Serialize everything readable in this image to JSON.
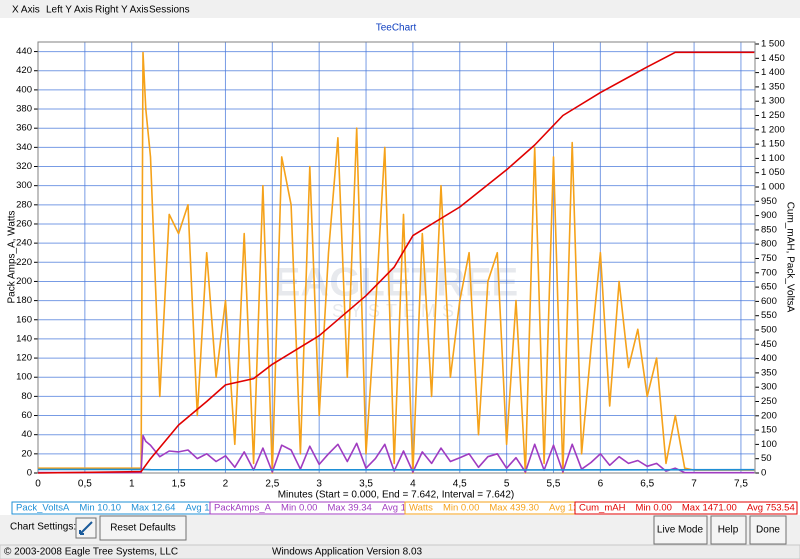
{
  "menu": [
    "X Axis",
    "Left Y Axis",
    "Right Y Axis",
    "Sessions"
  ],
  "chart_data": {
    "type": "line",
    "title": "TeeChart",
    "watermark": [
      "EAGLETREE",
      "SYSTEMS"
    ],
    "x_label": "Minutes (Start = 0.000,  End = 7.642,  Interval =  7.642)",
    "y_label": "Pack Amps_A, Watts",
    "y2_label": "Cum_mAH, Pack_VoltsA",
    "xlim": [
      0,
      7.65
    ],
    "ylim": [
      0,
      450
    ],
    "y2lim": [
      0,
      1507
    ],
    "grid": true,
    "xticks": [
      0,
      {
        "value": 0.5,
        "label": "0,5"
      },
      1,
      {
        "value": 1.5,
        "label": "1,5"
      },
      2,
      {
        "value": 2.5,
        "label": "2,5"
      },
      3,
      {
        "value": 3.5,
        "label": "3,5"
      },
      4,
      {
        "value": 4.5,
        "label": "4,5"
      },
      5,
      {
        "value": 5.5,
        "label": "5,5"
      },
      6,
      {
        "value": 6.5,
        "label": "6,5"
      },
      7,
      {
        "value": 7.5,
        "label": "7,5"
      }
    ],
    "yticks": [
      0,
      20,
      40,
      60,
      80,
      100,
      120,
      140,
      160,
      180,
      200,
      220,
      240,
      260,
      280,
      300,
      320,
      340,
      360,
      380,
      400,
      420,
      440
    ],
    "y2ticks": [
      0,
      50,
      100,
      150,
      200,
      250,
      300,
      350,
      400,
      450,
      500,
      550,
      600,
      650,
      700,
      750,
      800,
      850,
      900,
      950,
      {
        "value": 1000,
        "label": "1 000"
      },
      {
        "value": 1050,
        "label": "1 050"
      },
      {
        "value": 1100,
        "label": "1 100"
      },
      {
        "value": 1150,
        "label": "1 150"
      },
      {
        "value": 1200,
        "label": "1 200"
      },
      {
        "value": 1250,
        "label": "1 250"
      },
      {
        "value": 1300,
        "label": "1 300"
      },
      {
        "value": 1350,
        "label": "1 350"
      },
      {
        "value": 1400,
        "label": "1 400"
      },
      {
        "value": 1450,
        "label": "1 450"
      },
      {
        "value": 1500,
        "label": "1 500"
      }
    ],
    "series": [
      {
        "name": "Pack_VoltsA",
        "color": "#1e8fd6",
        "axis": "y2",
        "stats": [
          "Min 10.10",
          "Max 12.64",
          "Avg 11.20"
        ],
        "x": [
          0,
          1.1,
          1.2,
          3,
          5,
          7.642
        ],
        "values": [
          12.6,
          12.6,
          11.5,
          11.2,
          10.9,
          11.5
        ]
      },
      {
        "name": "PackAmps_A",
        "color": "#a03cc0",
        "axis": "y",
        "stats": [
          "Min 0.00",
          "Max 39.34",
          "Avg 11.57"
        ],
        "x": [
          0,
          1.1,
          1.12,
          1.15,
          1.2,
          1.3,
          1.4,
          1.5,
          1.6,
          1.7,
          1.8,
          1.9,
          2.0,
          2.1,
          2.2,
          2.3,
          2.4,
          2.5,
          2.6,
          2.7,
          2.8,
          2.9,
          3.0,
          3.1,
          3.2,
          3.3,
          3.4,
          3.5,
          3.6,
          3.7,
          3.8,
          3.9,
          4.0,
          4.1,
          4.2,
          4.3,
          4.4,
          4.5,
          4.6,
          4.7,
          4.8,
          4.9,
          5.0,
          5.1,
          5.2,
          5.3,
          5.4,
          5.5,
          5.6,
          5.7,
          5.8,
          5.9,
          6.0,
          6.1,
          6.2,
          6.3,
          6.4,
          6.5,
          6.6,
          6.7,
          6.8,
          6.9,
          7.0,
          7.642
        ],
        "values": [
          0.4,
          0.4,
          39,
          33,
          29,
          17,
          23,
          22,
          24,
          15,
          20,
          12,
          18,
          6,
          22,
          3,
          26,
          1,
          29,
          24,
          4,
          28,
          9,
          20,
          30,
          12,
          31,
          5,
          15,
          30,
          2,
          23,
          1,
          22,
          10,
          26,
          12,
          16,
          20,
          6,
          17,
          20,
          5,
          16,
          1,
          30,
          3,
          29,
          1,
          30,
          4,
          11,
          20,
          8,
          17,
          10,
          13,
          7,
          10,
          2,
          5,
          0.4,
          0.3,
          0.3
        ]
      },
      {
        "name": "Watts",
        "color": "#f5a21a",
        "axis": "y",
        "stats": [
          "Min 0.00",
          "Max 439.30",
          "Avg 125.00"
        ],
        "x": [
          0,
          1.1,
          1.12,
          1.15,
          1.2,
          1.3,
          1.4,
          1.5,
          1.6,
          1.7,
          1.8,
          1.9,
          2.0,
          2.1,
          2.2,
          2.3,
          2.4,
          2.5,
          2.6,
          2.7,
          2.8,
          2.9,
          3.0,
          3.1,
          3.2,
          3.3,
          3.4,
          3.5,
          3.6,
          3.7,
          3.8,
          3.9,
          4.0,
          4.1,
          4.2,
          4.3,
          4.4,
          4.5,
          4.6,
          4.7,
          4.8,
          4.9,
          5.0,
          5.1,
          5.2,
          5.3,
          5.4,
          5.5,
          5.6,
          5.7,
          5.8,
          5.9,
          6.0,
          6.1,
          6.2,
          6.3,
          6.4,
          6.5,
          6.6,
          6.7,
          6.8,
          6.9,
          7.0,
          7.642
        ],
        "values": [
          5,
          5,
          439,
          380,
          330,
          80,
          270,
          250,
          280,
          60,
          230,
          100,
          180,
          30,
          250,
          10,
          300,
          0,
          330,
          280,
          20,
          320,
          60,
          230,
          350,
          100,
          360,
          20,
          170,
          340,
          10,
          270,
          0,
          250,
          80,
          300,
          100,
          180,
          230,
          40,
          200,
          230,
          30,
          180,
          0,
          340,
          10,
          330,
          0,
          345,
          20,
          130,
          230,
          70,
          200,
          110,
          150,
          80,
          120,
          10,
          60,
          5,
          3,
          3
        ]
      },
      {
        "name": "Cum_mAH",
        "color": "#e00000",
        "axis": "y2",
        "stats": [
          "Min 0.00",
          "Max 1471.00",
          "Avg 753.54"
        ],
        "x": [
          0,
          1.1,
          1.2,
          1.5,
          1.8,
          2.0,
          2.3,
          2.5,
          3.0,
          3.5,
          3.8,
          4.0,
          4.5,
          5.0,
          5.3,
          5.6,
          6.0,
          6.5,
          6.8,
          7.642
        ],
        "values": [
          0,
          5,
          50,
          168,
          250,
          308,
          330,
          380,
          480,
          620,
          720,
          830,
          930,
          1060,
          1147,
          1250,
          1330,
          1420,
          1471,
          1471
        ]
      }
    ]
  },
  "toolbar": {
    "settings_label": "Chart Settings:",
    "reset": "Reset Defaults",
    "live": "Live Mode",
    "help": "Help",
    "done": "Done"
  },
  "status": {
    "copyright": "© 2003-2008 Eagle Tree Systems, LLC",
    "version": "Windows Application Version 8.03"
  }
}
